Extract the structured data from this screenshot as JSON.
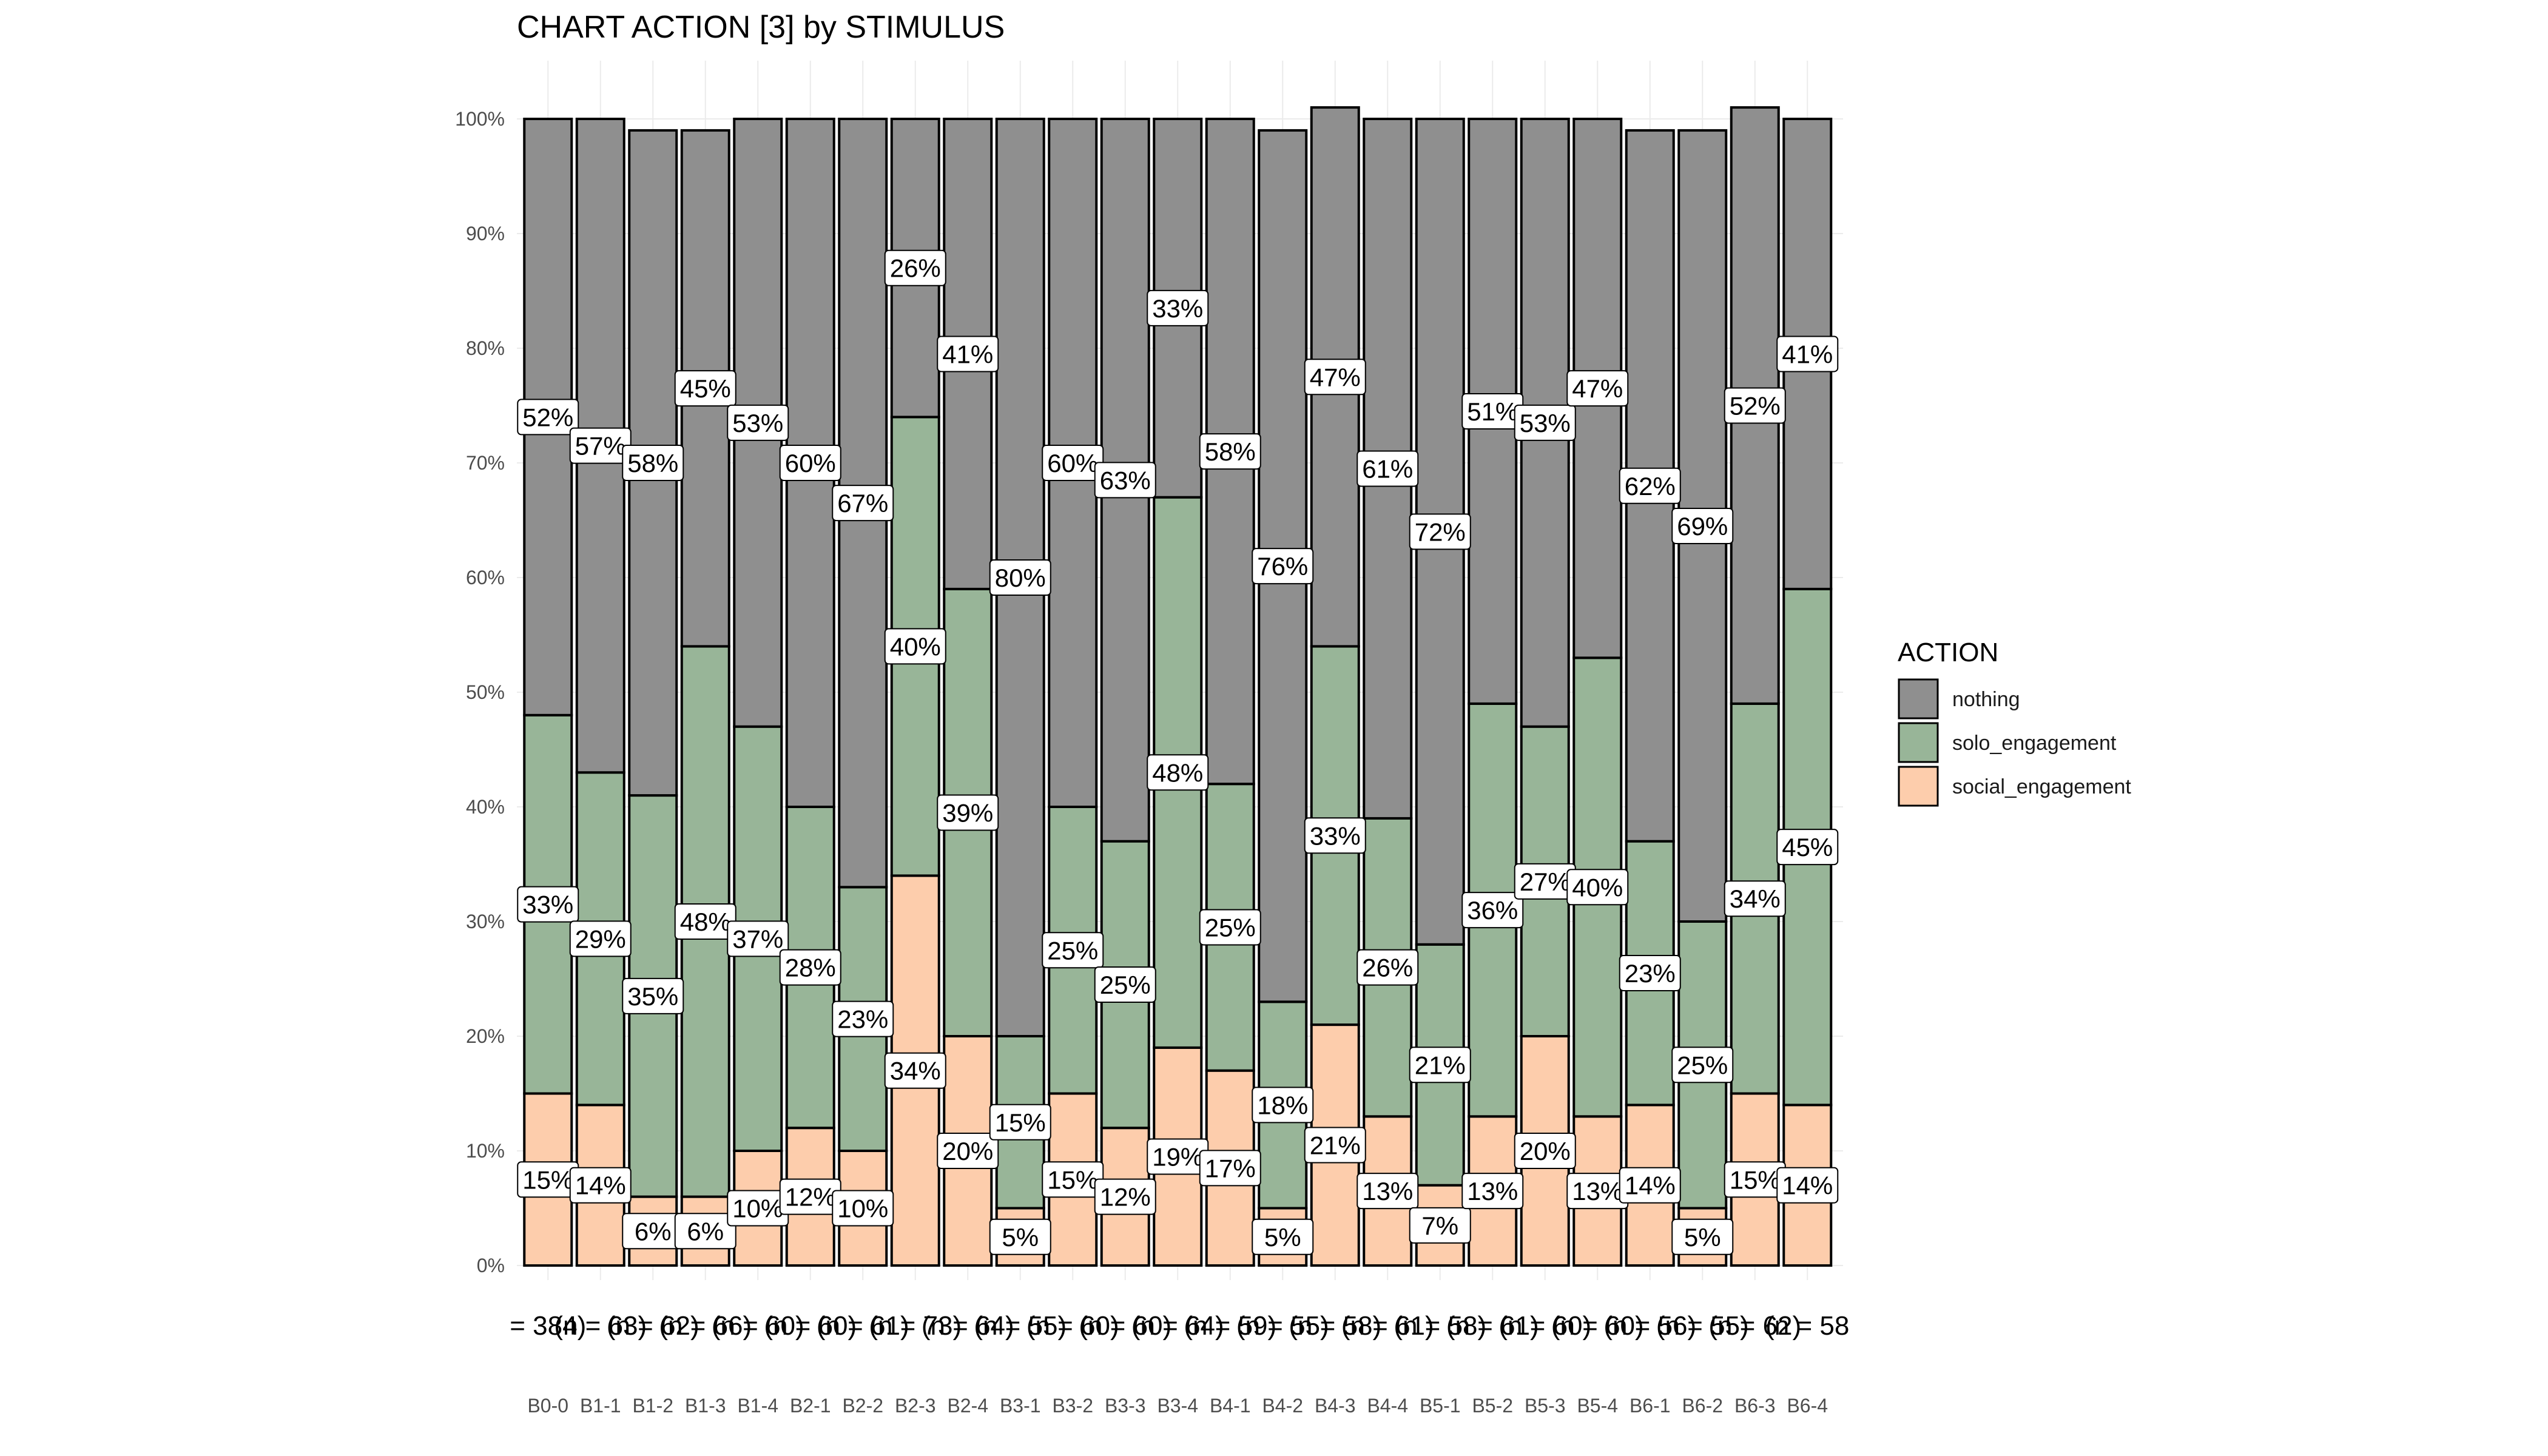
{
  "chart_data": {
    "type": "bar",
    "stacked": true,
    "title": "CHART ACTION [3] by STIMULUS",
    "xlabel": "",
    "ylabel": "",
    "ylim": [
      0,
      100
    ],
    "yticks": [
      "0%",
      "10%",
      "20%",
      "30%",
      "40%",
      "50%",
      "60%",
      "70%",
      "80%",
      "90%",
      "100%"
    ],
    "grid": true,
    "legend": {
      "title": "ACTION",
      "position": "right",
      "entries": [
        "nothing",
        "solo_engagement",
        "social_engagement"
      ]
    },
    "categories": [
      "B0-0",
      "B1-1",
      "B1-2",
      "B1-3",
      "B1-4",
      "B2-1",
      "B2-2",
      "B2-3",
      "B2-4",
      "B3-1",
      "B3-2",
      "B3-3",
      "B3-4",
      "B4-1",
      "B4-2",
      "B4-3",
      "B4-4",
      "B5-1",
      "B5-2",
      "B5-3",
      "B5-4",
      "B6-1",
      "B6-2",
      "B6-3",
      "B6-4"
    ],
    "n_labels": [
      "= 384)",
      "(n = 63)",
      "(n = 62)",
      "(n = 66)",
      "(n = 60)",
      "(n = 60)",
      "(n = 61)",
      "(n = 73)",
      "(n = 64)",
      "(n = 55)",
      "(n = 60)",
      "(n = 60)",
      "(n = 64)",
      "(n = 59)",
      "(n = 55)",
      "(n = 58)",
      "(n = 61)",
      "(n = 58)",
      "(n = 61)",
      "(n = 60)",
      "(n = 60)",
      "(n = 56)",
      "(n = 55)",
      "(n = 62)",
      "(n = 58"
    ],
    "series": [
      {
        "name": "social_engagement",
        "color": "#FDCDAC",
        "values": [
          15,
          14,
          6,
          6,
          10,
          12,
          10,
          34,
          20,
          5,
          15,
          12,
          19,
          17,
          5,
          21,
          13,
          7,
          13,
          20,
          13,
          14,
          5,
          15,
          14
        ],
        "labels": [
          "15%",
          "14%",
          "6%",
          "6%",
          "10%",
          "12%",
          "10%",
          "34%",
          "20%",
          "5%",
          "15%",
          "12%",
          "19%",
          "17%",
          "5%",
          "21%",
          "13%",
          "7%",
          "13%",
          "20%",
          "13%",
          "14%",
          "5%",
          "15%",
          "14%"
        ]
      },
      {
        "name": "solo_engagement",
        "color": "#98B598",
        "values": [
          33,
          29,
          35,
          48,
          37,
          28,
          23,
          40,
          39,
          15,
          25,
          25,
          48,
          25,
          18,
          33,
          26,
          21,
          36,
          27,
          40,
          23,
          25,
          34,
          45
        ],
        "labels": [
          "33%",
          "29%",
          "35%",
          "48%",
          "37%",
          "28%",
          "23%",
          "40%",
          "39%",
          "15%",
          "25%",
          "25%",
          "48%",
          "25%",
          "18%",
          "33%",
          "26%",
          "21%",
          "36%",
          "27%",
          "40%",
          "23%",
          "25%",
          "34%",
          "45%"
        ]
      },
      {
        "name": "nothing",
        "color": "#8F8F8F",
        "values": [
          52,
          57,
          58,
          45,
          53,
          60,
          67,
          26,
          41,
          80,
          60,
          63,
          33,
          58,
          76,
          47,
          61,
          72,
          51,
          53,
          47,
          62,
          69,
          52,
          41
        ],
        "labels": [
          "52%",
          "57%",
          "58%",
          "45%",
          "53%",
          "60%",
          "67%",
          "26%",
          "41%",
          "80%",
          "60%",
          "63%",
          "33%",
          "58%",
          "76%",
          "47%",
          "61%",
          "72%",
          "51%",
          "53%",
          "47%",
          "62%",
          "69%",
          "52%",
          "41%"
        ]
      }
    ]
  }
}
